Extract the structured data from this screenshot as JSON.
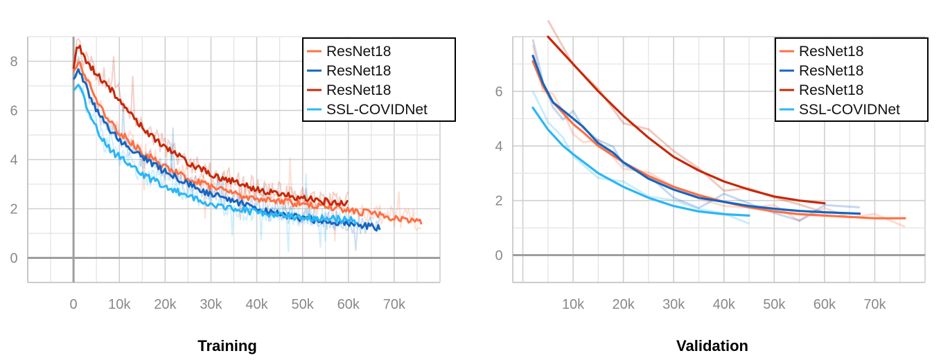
{
  "chart_data": [
    {
      "type": "line",
      "title": "Training",
      "xlabel": "",
      "ylabel": "",
      "xlim": [
        -10000,
        80000
      ],
      "ylim": [
        -1,
        9
      ],
      "x_ticks": [
        0,
        10000,
        20000,
        30000,
        40000,
        50000,
        60000,
        70000
      ],
      "x_tick_labels": [
        "0",
        "10k",
        "20k",
        "30k",
        "40k",
        "50k",
        "60k",
        "70k"
      ],
      "y_ticks": [
        0,
        2,
        4,
        6,
        8
      ],
      "y_tick_labels": [
        "0",
        "2",
        "4",
        "6",
        "8"
      ],
      "grid": true,
      "legend_position": "top-right",
      "series": [
        {
          "name": "ResNet18",
          "color": "#FF7043",
          "x": [
            0,
            1000,
            2000,
            4000,
            6000,
            8000,
            10000,
            15000,
            20000,
            25000,
            30000,
            35000,
            40000,
            45000,
            50000,
            55000,
            60000,
            65000,
            70000,
            76000
          ],
          "y": [
            7.6,
            8.0,
            7.6,
            6.9,
            6.1,
            5.5,
            5.1,
            4.3,
            3.7,
            3.2,
            2.9,
            2.6,
            2.4,
            2.3,
            2.2,
            2.1,
            1.95,
            1.8,
            1.6,
            1.5
          ]
        },
        {
          "name": "ResNet18",
          "color": "#1565C0",
          "x": [
            0,
            1000,
            2000,
            4000,
            6000,
            8000,
            10000,
            15000,
            20000,
            25000,
            30000,
            35000,
            40000,
            45000,
            50000,
            55000,
            60000,
            65000,
            67000
          ],
          "y": [
            7.2,
            7.8,
            7.3,
            6.4,
            5.7,
            5.2,
            4.8,
            4.1,
            3.5,
            3.0,
            2.6,
            2.3,
            2.0,
            1.8,
            1.6,
            1.5,
            1.4,
            1.3,
            1.2
          ]
        },
        {
          "name": "ResNet18",
          "color": "#C62808",
          "x": [
            0,
            1000,
            2000,
            4000,
            6000,
            8000,
            10000,
            15000,
            20000,
            25000,
            30000,
            35000,
            40000,
            45000,
            50000,
            55000,
            60000
          ],
          "y": [
            7.8,
            8.7,
            8.2,
            7.7,
            7.3,
            6.9,
            6.4,
            5.3,
            4.5,
            3.9,
            3.4,
            3.1,
            2.8,
            2.6,
            2.4,
            2.3,
            2.2
          ]
        },
        {
          "name": "SSL-COVIDNet",
          "color": "#29B6F6",
          "x": [
            0,
            1000,
            2000,
            4000,
            6000,
            8000,
            10000,
            15000,
            20000,
            25000,
            30000,
            35000,
            40000,
            45000,
            50000,
            55000,
            60000,
            62000
          ],
          "y": [
            6.8,
            7.1,
            6.6,
            5.6,
            4.9,
            4.4,
            4.1,
            3.4,
            2.9,
            2.5,
            2.2,
            2.0,
            1.85,
            1.75,
            1.65,
            1.6,
            1.55,
            1.5
          ]
        }
      ]
    },
    {
      "type": "line",
      "title": "Validation",
      "xlabel": "",
      "ylabel": "",
      "xlim": [
        -2000,
        80000
      ],
      "ylim": [
        -1,
        8
      ],
      "x_ticks": [
        10000,
        20000,
        30000,
        40000,
        50000,
        60000,
        70000
      ],
      "x_tick_labels": [
        "10k",
        "20k",
        "30k",
        "40k",
        "50k",
        "60k",
        "70k"
      ],
      "y_ticks": [
        0,
        2,
        4,
        6
      ],
      "y_tick_labels": [
        "0",
        "2",
        "4",
        "6"
      ],
      "grid": true,
      "legend_position": "top-right",
      "series": [
        {
          "name": "ResNet18",
          "color": "#FF7043",
          "x": [
            2000,
            4000,
            6000,
            8000,
            10000,
            12000,
            15000,
            20000,
            25000,
            30000,
            35000,
            40000,
            45000,
            50000,
            55000,
            60000,
            65000,
            70000,
            76000
          ],
          "y": [
            7.1,
            6.2,
            5.6,
            5.2,
            4.8,
            4.5,
            4.0,
            3.4,
            2.9,
            2.5,
            2.2,
            1.95,
            1.75,
            1.6,
            1.5,
            1.45,
            1.4,
            1.35,
            1.35
          ]
        },
        {
          "name": "ResNet18",
          "color": "#1565C0",
          "x": [
            2000,
            4000,
            6000,
            8000,
            10000,
            12000,
            15000,
            18000,
            20000,
            25000,
            30000,
            35000,
            40000,
            45000,
            50000,
            55000,
            60000,
            67000
          ],
          "y": [
            7.3,
            6.3,
            5.6,
            5.3,
            5.0,
            4.7,
            4.1,
            3.75,
            3.4,
            2.8,
            2.4,
            2.1,
            1.95,
            1.8,
            1.7,
            1.62,
            1.57,
            1.52
          ]
        },
        {
          "name": "ResNet18",
          "color": "#C62808",
          "x": [
            5000,
            10000,
            15000,
            20000,
            25000,
            30000,
            35000,
            40000,
            45000,
            50000,
            55000,
            60000
          ],
          "y": [
            8.0,
            7.0,
            6.0,
            5.1,
            4.3,
            3.6,
            3.1,
            2.7,
            2.4,
            2.15,
            2.0,
            1.9
          ]
        },
        {
          "name": "SSL-COVIDNet",
          "color": "#29B6F6",
          "x": [
            2000,
            5000,
            8000,
            10000,
            15000,
            20000,
            25000,
            30000,
            35000,
            40000,
            45000
          ],
          "y": [
            5.4,
            4.6,
            4.0,
            3.7,
            3.0,
            2.5,
            2.1,
            1.8,
            1.6,
            1.5,
            1.45
          ]
        }
      ]
    }
  ]
}
